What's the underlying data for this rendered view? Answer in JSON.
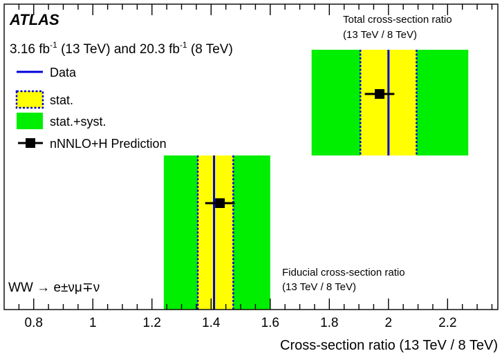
{
  "chart_data": {
    "type": "ratio-comparison",
    "experiment_label": "ATLAS",
    "luminosity": {
      "value_13": "3.16",
      "unit_13": "fb",
      "exp_13": "-1",
      "energy_13": "(13 TeV)",
      "joiner": "and",
      "value_8": "20.3",
      "unit_8": "fb",
      "exp_8": "-1",
      "energy_8": "(8 TeV)"
    },
    "xlabel": "Cross-section ratio (13 TeV / 8 TeV)",
    "xlim": [
      0.7,
      2.37
    ],
    "x_ticks": [
      {
        "value": 0.8,
        "label": "0.8"
      },
      {
        "value": 1.0,
        "label": "1"
      },
      {
        "value": 1.2,
        "label": "1.2"
      },
      {
        "value": 1.4,
        "label": "1.4"
      },
      {
        "value": 1.6,
        "label": "1.6"
      },
      {
        "value": 1.8,
        "label": "1.8"
      },
      {
        "value": 2.0,
        "label": "2"
      },
      {
        "value": 2.2,
        "label": "2.2"
      }
    ],
    "x_minor_step": 0.05,
    "process_label": {
      "pre": "WW",
      "arrow": "→",
      "final": "e±νμ∓ν"
    },
    "legend": {
      "placement": "top-left",
      "entries": [
        {
          "key": "data",
          "label": "Data"
        },
        {
          "key": "stat",
          "label": "stat."
        },
        {
          "key": "statsyst",
          "label": "stat.+syst."
        },
        {
          "key": "prediction",
          "label": "nNNLO+H Prediction"
        }
      ]
    },
    "colors": {
      "data_line": "#0000dd",
      "stat_band": "#ffff00",
      "stat_border": "#0000dd",
      "statsyst_band": "#00ee00",
      "prediction": "#000000"
    },
    "measurements": [
      {
        "name": "Total",
        "title_line1": "Total cross-section ratio",
        "title_line2": "(13 TeV / 8 TeV)",
        "label_position": "above",
        "data": 2.0,
        "stat": [
          1.905,
          2.095
        ],
        "statsyst": [
          1.74,
          2.27
        ],
        "prediction": 1.97,
        "prediction_error": 0.05
      },
      {
        "name": "Fiducial",
        "title_line1": "Fiducial cross-section ratio",
        "title_line2": "(13 TeV / 8 TeV)",
        "label_position": "right",
        "data": 1.41,
        "stat": [
          1.355,
          1.475
        ],
        "statsyst": [
          1.24,
          1.6
        ],
        "prediction": 1.43,
        "prediction_error": 0.05
      }
    ]
  }
}
